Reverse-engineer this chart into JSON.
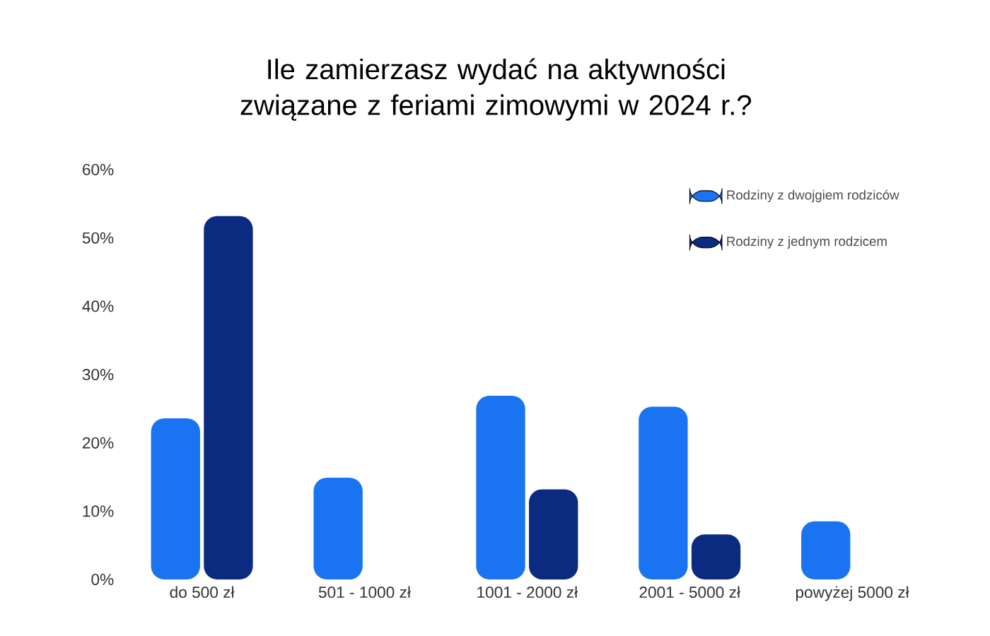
{
  "chart_data": {
    "type": "bar",
    "title": "Ile zamierzasz wydać na aktywności związane z feriami zimowymi w 2024 r.?",
    "categories": [
      "do 500 zł",
      "501 - 1000 zł",
      "1001 - 2000 zł",
      "2001 - 5000 zł",
      "powyżej 5000 zł"
    ],
    "series": [
      {
        "name": "Rodziny z dwojgiem rodziców",
        "color": "#1a73f0",
        "values": [
          23.6,
          14.9,
          26.9,
          25.3,
          8.5
        ]
      },
      {
        "name": "Rodziny z jednym rodzicem",
        "color": "#0b2b80",
        "values": [
          53.2,
          null,
          13.2,
          6.6,
          null
        ]
      }
    ],
    "ylim": [
      0,
      60
    ],
    "yticks": [
      {
        "value": 0,
        "label": "0%"
      },
      {
        "value": 10,
        "label": "10%"
      },
      {
        "value": 20,
        "label": "20%"
      },
      {
        "value": 30,
        "label": "30%"
      },
      {
        "value": 40,
        "label": "40%"
      },
      {
        "value": 50,
        "label": "50%"
      },
      {
        "value": 60,
        "label": "60%"
      }
    ],
    "grid": false,
    "legend": "top right"
  }
}
